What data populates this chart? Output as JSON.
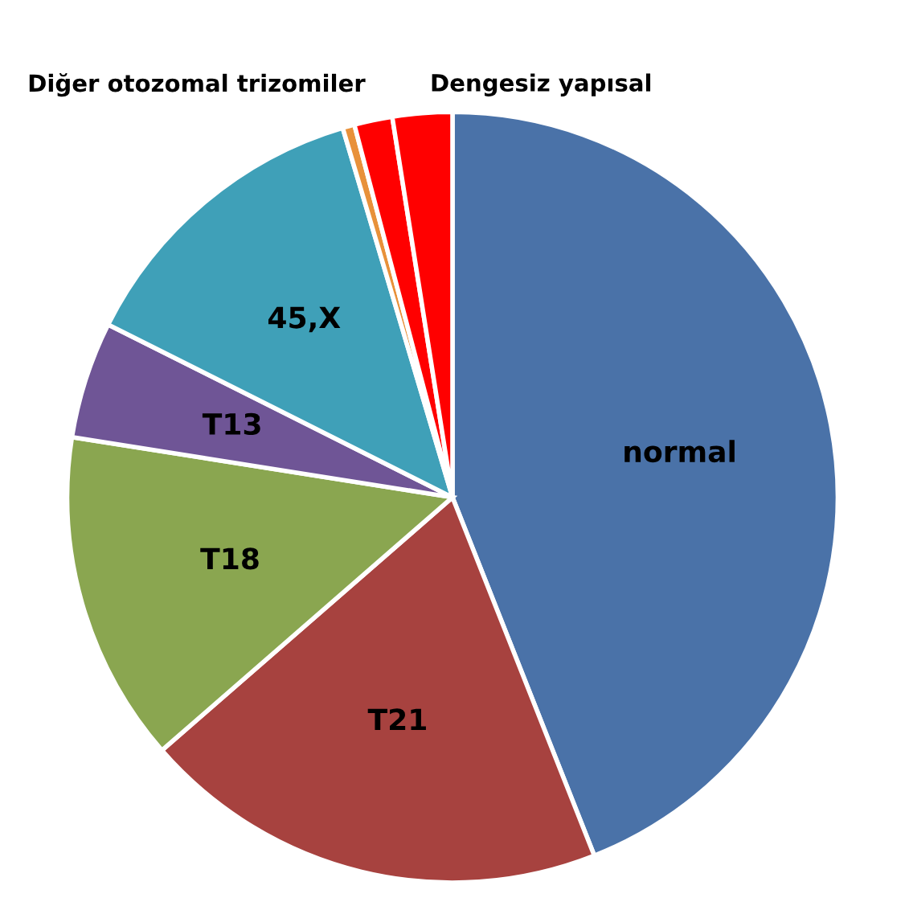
{
  "chart_data": {
    "type": "pie",
    "categories": [
      "normal",
      "T21",
      "T18",
      "T13",
      "45,X",
      null,
      "Diğer otozomal trizomiler",
      "Dengesiz yapısal"
    ],
    "values": [
      44,
      19.6,
      13.9,
      4.9,
      13,
      0.5,
      1.6,
      2.5
    ],
    "colors": [
      "#4a72a8",
      "#a7423f",
      "#8aa650",
      "#6f5596",
      "#3fa0b8",
      "#e8913a",
      "#ff0000",
      "#ff0000"
    ]
  }
}
